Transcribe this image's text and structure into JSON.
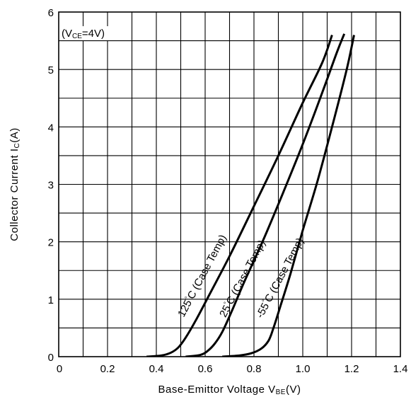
{
  "chart_data": {
    "type": "line",
    "xlabel_main": "Base-Emittor Voltage V",
    "xlabel_sub": "BE",
    "xlabel_tail": "(V)",
    "ylabel_main": "Collector Current I",
    "ylabel_sub": "C",
    "ylabel_tail": "(A)",
    "annotation_main": "(V",
    "annotation_sub": "CE",
    "annotation_tail": "=4V)",
    "xlim": [
      0,
      1.4
    ],
    "ylim": [
      0,
      6
    ],
    "x_ticks": [
      0,
      0.2,
      0.4,
      0.6,
      0.8,
      1.0,
      1.2,
      1.4
    ],
    "x_tick_labels": [
      "0",
      "0.2",
      "0.4",
      "0.6",
      "0.8",
      "1.0",
      "1.2",
      "1.4"
    ],
    "y_ticks": [
      0,
      1,
      2,
      3,
      4,
      5,
      6
    ],
    "y_tick_labels": [
      "0",
      "1",
      "2",
      "3",
      "4",
      "5",
      "6"
    ],
    "grid": true,
    "series": [
      {
        "name": "125°C (Case Temp)",
        "label_main": "125",
        "label_tail": "C (Case Temp)",
        "x": [
          0.36,
          0.42,
          0.46,
          0.49,
          0.52,
          0.56,
          0.62,
          0.7,
          0.8,
          0.9,
          1.0,
          1.08,
          1.12
        ],
        "y": [
          0,
          0.02,
          0.07,
          0.16,
          0.33,
          0.62,
          1.1,
          1.75,
          2.62,
          3.5,
          4.42,
          5.12,
          5.6
        ]
      },
      {
        "name": "25°C (Case Temp)",
        "label_main": "25",
        "label_tail": "C (Case Temp)",
        "x": [
          0.52,
          0.58,
          0.61,
          0.64,
          0.67,
          0.71,
          0.76,
          0.84,
          0.92,
          1.0,
          1.08,
          1.14,
          1.17
        ],
        "y": [
          0,
          0.03,
          0.1,
          0.23,
          0.43,
          0.8,
          1.3,
          2.05,
          2.86,
          3.7,
          4.6,
          5.3,
          5.62
        ]
      },
      {
        "name": "-55°C (Case Temp)",
        "label_main": "-55",
        "label_tail": "C (Case Temp)",
        "x": [
          0.67,
          0.74,
          0.79,
          0.83,
          0.86,
          0.88,
          0.91,
          0.95,
          1.0,
          1.06,
          1.12,
          1.18,
          1.21
        ],
        "y": [
          0,
          0.02,
          0.06,
          0.14,
          0.28,
          0.5,
          0.9,
          1.45,
          2.2,
          3.05,
          4.0,
          5.0,
          5.6
        ]
      }
    ]
  }
}
